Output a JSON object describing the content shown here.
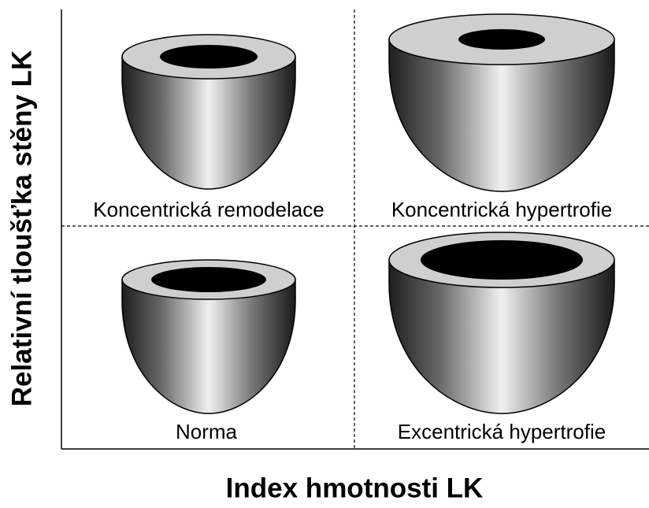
{
  "axes": {
    "y_label": "Relativní tloušťka stěny LK",
    "x_label": "Index hmotnosti LK"
  },
  "quadrants": [
    {
      "label": "Koncentrická remodelace"
    },
    {
      "label": "Koncentrická hypertrofie"
    },
    {
      "label": "Norma"
    },
    {
      "label": "Excentrická hypertrofie"
    }
  ]
}
